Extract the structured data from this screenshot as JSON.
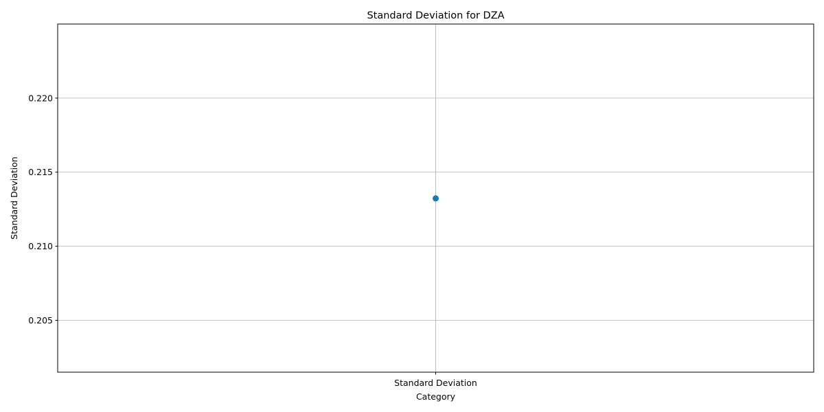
{
  "chart_data": {
    "type": "scatter",
    "title": "Standard Deviation for DZA",
    "xlabel": "Category",
    "ylabel": "Standard Deviation",
    "categories": [
      "Standard Deviation"
    ],
    "series": [
      {
        "values": [
          0.21323
        ],
        "color": "#1f77b4"
      }
    ],
    "ylim": [
      0.2015,
      0.225
    ],
    "yticks": [
      0.205,
      0.21,
      0.215,
      0.22
    ],
    "ytick_labels": [
      "0.205",
      "0.210",
      "0.215",
      "0.220"
    ],
    "grid": true,
    "legend": "none"
  }
}
